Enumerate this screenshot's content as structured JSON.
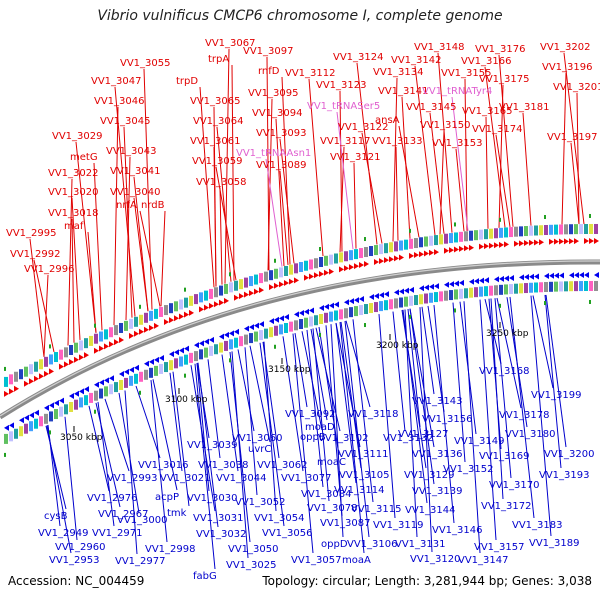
{
  "title": "Vibrio vulnificus CMCP6 chromosome I, complete genome",
  "footer": {
    "accession": "Accession: NC_004459",
    "summary": "Topology: circular; Length: 3,281,944 bp; Genes: 3,038"
  },
  "colors": {
    "forward_label": "#e00000",
    "reverse_label": "#0000cc",
    "rna_label": "#e060d0",
    "backbone": "#888888"
  },
  "scale_marks": [
    "3050 kbp",
    "3100 kbp",
    "3150 kbp",
    "3200 kbp",
    "3250 kbp"
  ],
  "top_labels": [
    "VV1_3067",
    "trpA",
    "VV1_3055",
    "trpD",
    "VV1_3047",
    "VV1_3046",
    "VV1_3065",
    "VV1_3045",
    "VV1_3064",
    "VV1_3029",
    "VV1_3043",
    "VV1_3061",
    "metG",
    "VV1_3041",
    "VV1_3059",
    "VV1_3022",
    "VV1_3058",
    "VV1_3020",
    "VV1_3040",
    "nrfA",
    "nrdB",
    "VV1_3018",
    "maf",
    "VV1_2995",
    "VV1_2992",
    "VV1_2996",
    "VV1_3097",
    "rnfD",
    "VV1_3112",
    "VV1_3124",
    "VV1_3095",
    "VV1_3123",
    "VV1_3094",
    "VV1_3093",
    "VV1_3122",
    "VV1_3117",
    "VV1_3121",
    "VV1_3089",
    "VV1_3148",
    "VV1_3142",
    "VV1_3134",
    "VV1_3155",
    "VV1_3141",
    "VV1_3145",
    "ansA",
    "VV1_3150",
    "VV1_3133",
    "VV1_3153",
    "VV1_3176",
    "VV1_3166",
    "VV1_3175",
    "VV1_3165",
    "VV1_3181",
    "VV1_3174",
    "VV1_3202",
    "VV1_3196",
    "VV1_3201",
    "VV1_3197"
  ],
  "rna_labels": [
    "VV1_tRNASer5",
    "VV1_tRNATyr4",
    "VV1_tRNAAsn1"
  ],
  "bottom_labels": [
    "VV1_3092",
    "moaD",
    "oppB",
    "VV1_3118",
    "VV1_3143",
    "VV1_3168",
    "VV1_3199",
    "VV1_3178",
    "VV1_3039",
    "VV1_3060",
    "uvrC",
    "VV1_3102",
    "VV1_3132",
    "VV1_3156",
    "VV1_3180",
    "VV1_3016",
    "VV1_3038",
    "VV1_3062",
    "moaC",
    "VV1_3111",
    "VV1_3127",
    "VV1_3149",
    "VV1_3200",
    "VV1_2993",
    "VV1_3021",
    "VV1_3044",
    "VV1_3077",
    "VV1_3136",
    "VV1_3169",
    "VV1_3193",
    "VV1_2976",
    "acpP",
    "VV1_3030",
    "VV1_3084",
    "VV1_3105",
    "VV1_3129",
    "VV1_3152",
    "VV1_3170",
    "cysB",
    "VV1_2967",
    "VV1_3052",
    "VV1_3078",
    "VV1_3114",
    "VV1_3139",
    "VV1_3172",
    "VV1_2971",
    "VV1_3000",
    "VV1_3031",
    "VV1_3054",
    "VV1_3087",
    "VV1_3115",
    "VV1_3144",
    "VV1_2949",
    "tmk",
    "VV1_3032",
    "VV1_3056",
    "oppD",
    "VV1_3119",
    "VV1_3146",
    "VV1_3183",
    "VV1_2960",
    "VV1_2998",
    "VV1_3050",
    "VV1_3106",
    "VV1_3131",
    "VV1_3157",
    "VV1_3189",
    "VV1_2953",
    "VV1_2977",
    "VV1_3025",
    "VV1_3057",
    "moaA",
    "VV1_3120",
    "VV1_3147",
    "fabG"
  ]
}
